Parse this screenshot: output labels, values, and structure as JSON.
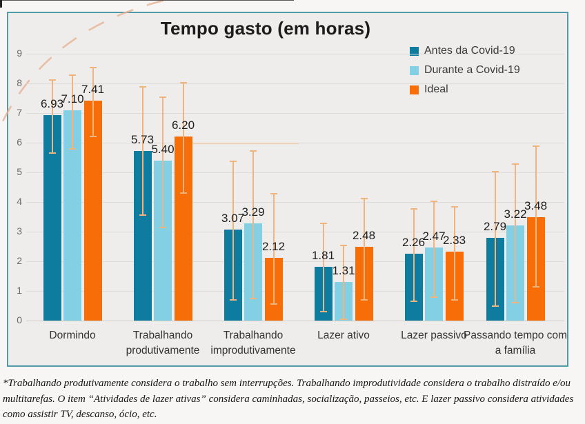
{
  "chart_data": {
    "type": "bar",
    "title": "Tempo gasto (em horas)",
    "categories": [
      "Dormindo",
      "Trabalhando produtivamente",
      "Trabalhando improdutivamente",
      "Lazer ativo",
      "Lazer passivo",
      "Passando tempo com a família"
    ],
    "series": [
      {
        "name": "Antes da Covid-19",
        "color": "#0e7c9e",
        "values": [
          6.93,
          5.73,
          3.07,
          1.81,
          2.26,
          2.79
        ],
        "error_low": [
          5.65,
          3.55,
          0.7,
          0.3,
          0.65,
          0.5
        ],
        "error_high": [
          8.15,
          7.9,
          5.4,
          3.3,
          3.8,
          5.05
        ]
      },
      {
        "name": "Durante a Covid-19",
        "color": "#83cfe4",
        "values": [
          7.1,
          5.4,
          3.29,
          1.31,
          2.47,
          3.22
        ],
        "error_low": [
          5.8,
          3.15,
          0.75,
          0.05,
          0.8,
          0.6
        ],
        "error_high": [
          8.3,
          7.55,
          5.75,
          2.55,
          4.05,
          5.3
        ]
      },
      {
        "name": "Ideal",
        "color": "#f76d08",
        "values": [
          7.41,
          6.2,
          2.12,
          2.48,
          2.33,
          3.48
        ],
        "error_low": [
          6.2,
          4.3,
          0.55,
          0.7,
          0.7,
          1.15
        ],
        "error_high": [
          8.55,
          8.05,
          4.3,
          4.15,
          3.85,
          5.9
        ]
      }
    ],
    "xlabel": "",
    "ylabel": "",
    "ylim": [
      0,
      9
    ],
    "yticks": [
      0,
      1,
      2,
      3,
      4,
      5,
      6,
      7,
      8,
      9
    ],
    "grid": true,
    "legend_position": "top-right",
    "error_bars": true,
    "error_bar_color": "#f0b57e",
    "value_label_decimals": 2
  },
  "footnote": {
    "text": "*Trabalhando produtivamente considera o trabalho sem interrupções. Trabalhando improdutividade considera o trabalho distraído e/ou multitarefas. O item “Atividades de lazer ativas” considera caminhadas, socialização, passeios, etc. E lazer passivo considera atividades como assistir TV, descanso, ócio, etc."
  },
  "colors": {
    "chart_border": "#4f9ca8",
    "chart_background": "#efedeb",
    "gridline": "#dcdcdc",
    "baseline": "#cfccca",
    "annotation_line": "#f0c896",
    "deco_arc": "#e6b193"
  }
}
